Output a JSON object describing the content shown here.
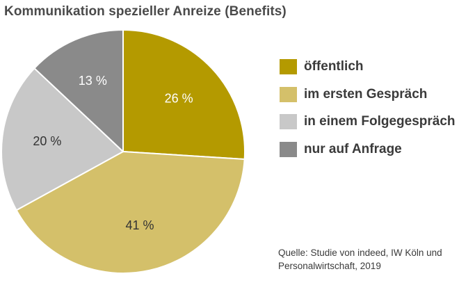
{
  "chart_data": {
    "type": "pie",
    "title": "Kommunikation spezieller Anreize (Benefits)",
    "categories": [
      "öffentlich",
      "im ersten Gespräch",
      "in einem Folgegespräch",
      "nur auf Anfrage"
    ],
    "values": [
      26,
      41,
      20,
      13
    ],
    "value_labels": [
      "26 %",
      "41 %",
      "20 %",
      "13 %"
    ],
    "colors": [
      "#b49a00",
      "#d4c06a",
      "#c8c8c8",
      "#8a8a8a"
    ],
    "label_colors": [
      "#ffffff",
      "#333333",
      "#333333",
      "#ffffff"
    ],
    "start": "top",
    "direction": "clockwise",
    "legend_position": "right"
  },
  "source": {
    "line1": "Quelle: Studie von indeed, IW Köln und",
    "line2": "Personalwirtschaft, 2019"
  }
}
